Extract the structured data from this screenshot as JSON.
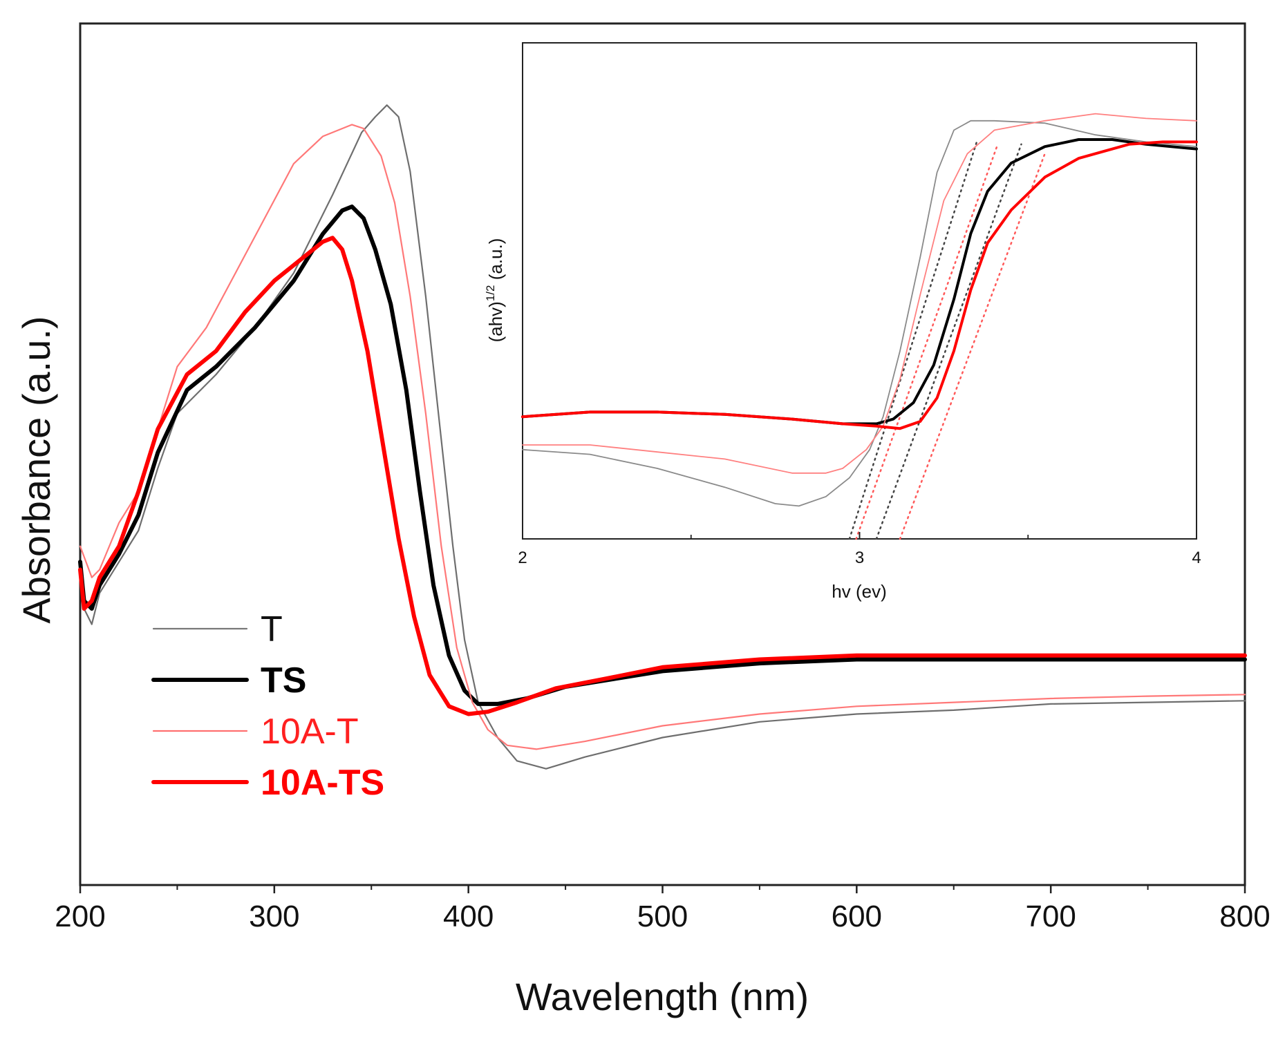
{
  "chart_data": [
    {
      "type": "line",
      "name": "main",
      "xlabel": "Wavelength (nm)",
      "ylabel": "Absorbance (a.u.)",
      "xlim": [
        200,
        800
      ],
      "ylim": [
        0,
        1
      ],
      "x_ticks": [
        200,
        300,
        400,
        500,
        600,
        700,
        800
      ],
      "y_ticks_shown": false,
      "legend_position": "lower-left",
      "series": [
        {
          "name": "T",
          "color": "#6e6e6e",
          "weight": "thin",
          "points": [
            [
              200,
              0.36
            ],
            [
              202,
              0.3
            ],
            [
              206,
              0.28
            ],
            [
              210,
              0.32
            ],
            [
              220,
              0.36
            ],
            [
              230,
              0.4
            ],
            [
              240,
              0.48
            ],
            [
              250,
              0.55
            ],
            [
              270,
              0.6
            ],
            [
              290,
              0.66
            ],
            [
              310,
              0.73
            ],
            [
              330,
              0.83
            ],
            [
              345,
              0.91
            ],
            [
              352,
              0.93
            ],
            [
              358,
              0.945
            ],
            [
              364,
              0.93
            ],
            [
              370,
              0.86
            ],
            [
              378,
              0.7
            ],
            [
              385,
              0.54
            ],
            [
              392,
              0.38
            ],
            [
              398,
              0.26
            ],
            [
              405,
              0.18
            ],
            [
              415,
              0.135
            ],
            [
              425,
              0.105
            ],
            [
              440,
              0.095
            ],
            [
              460,
              0.11
            ],
            [
              500,
              0.135
            ],
            [
              550,
              0.155
            ],
            [
              600,
              0.165
            ],
            [
              650,
              0.17
            ],
            [
              700,
              0.178
            ],
            [
              750,
              0.18
            ],
            [
              800,
              0.182
            ]
          ]
        },
        {
          "name": "TS",
          "color": "#000000",
          "weight": "thick",
          "points": [
            [
              200,
              0.36
            ],
            [
              202,
              0.31
            ],
            [
              206,
              0.3
            ],
            [
              210,
              0.33
            ],
            [
              220,
              0.37
            ],
            [
              230,
              0.42
            ],
            [
              240,
              0.5
            ],
            [
              255,
              0.58
            ],
            [
              270,
              0.61
            ],
            [
              290,
              0.66
            ],
            [
              310,
              0.72
            ],
            [
              325,
              0.78
            ],
            [
              335,
              0.81
            ],
            [
              340,
              0.815
            ],
            [
              346,
              0.8
            ],
            [
              352,
              0.76
            ],
            [
              360,
              0.69
            ],
            [
              368,
              0.58
            ],
            [
              375,
              0.45
            ],
            [
              382,
              0.33
            ],
            [
              390,
              0.24
            ],
            [
              398,
              0.195
            ],
            [
              405,
              0.178
            ],
            [
              415,
              0.178
            ],
            [
              430,
              0.185
            ],
            [
              450,
              0.2
            ],
            [
              500,
              0.22
            ],
            [
              550,
              0.23
            ],
            [
              600,
              0.235
            ],
            [
              700,
              0.235
            ],
            [
              800,
              0.235
            ]
          ]
        },
        {
          "name": "10A-T",
          "color": "#ff7878",
          "weight": "thin",
          "points": [
            [
              200,
              0.38
            ],
            [
              203,
              0.36
            ],
            [
              206,
              0.34
            ],
            [
              210,
              0.35
            ],
            [
              220,
              0.41
            ],
            [
              230,
              0.45
            ],
            [
              240,
              0.53
            ],
            [
              250,
              0.61
            ],
            [
              265,
              0.66
            ],
            [
              280,
              0.73
            ],
            [
              295,
              0.8
            ],
            [
              310,
              0.87
            ],
            [
              325,
              0.905
            ],
            [
              340,
              0.92
            ],
            [
              346,
              0.915
            ],
            [
              355,
              0.88
            ],
            [
              362,
              0.82
            ],
            [
              370,
              0.7
            ],
            [
              378,
              0.55
            ],
            [
              386,
              0.38
            ],
            [
              394,
              0.25
            ],
            [
              402,
              0.18
            ],
            [
              410,
              0.145
            ],
            [
              420,
              0.125
            ],
            [
              435,
              0.12
            ],
            [
              460,
              0.13
            ],
            [
              500,
              0.15
            ],
            [
              550,
              0.165
            ],
            [
              600,
              0.175
            ],
            [
              650,
              0.18
            ],
            [
              700,
              0.185
            ],
            [
              750,
              0.188
            ],
            [
              800,
              0.19
            ]
          ]
        },
        {
          "name": "10A-TS",
          "color": "#ff0000",
          "weight": "thick",
          "points": [
            [
              200,
              0.35
            ],
            [
              202,
              0.3
            ],
            [
              206,
              0.31
            ],
            [
              210,
              0.34
            ],
            [
              220,
              0.38
            ],
            [
              230,
              0.45
            ],
            [
              240,
              0.53
            ],
            [
              255,
              0.6
            ],
            [
              270,
              0.63
            ],
            [
              285,
              0.68
            ],
            [
              300,
              0.72
            ],
            [
              315,
              0.75
            ],
            [
              325,
              0.77
            ],
            [
              330,
              0.775
            ],
            [
              335,
              0.76
            ],
            [
              340,
              0.72
            ],
            [
              348,
              0.63
            ],
            [
              356,
              0.51
            ],
            [
              364,
              0.39
            ],
            [
              372,
              0.29
            ],
            [
              380,
              0.215
            ],
            [
              390,
              0.175
            ],
            [
              400,
              0.165
            ],
            [
              410,
              0.168
            ],
            [
              425,
              0.18
            ],
            [
              445,
              0.198
            ],
            [
              470,
              0.21
            ],
            [
              500,
              0.225
            ],
            [
              550,
              0.235
            ],
            [
              600,
              0.24
            ],
            [
              700,
              0.24
            ],
            [
              800,
              0.24
            ]
          ]
        }
      ]
    },
    {
      "type": "line",
      "name": "inset",
      "xlabel": "hv (ev)",
      "ylabel_base": "(ahv)",
      "ylabel_sup": "1/2",
      "ylabel_unit": " (a.u.)",
      "xlim": [
        2,
        4
      ],
      "ylim": [
        0,
        1
      ],
      "x_ticks": [
        2,
        3,
        4
      ],
      "series": [
        {
          "name": "T",
          "color": "#8a8a8a",
          "weight": "thin",
          "points": [
            [
              2.0,
              0.19
            ],
            [
              2.2,
              0.18
            ],
            [
              2.4,
              0.15
            ],
            [
              2.6,
              0.11
            ],
            [
              2.75,
              0.075
            ],
            [
              2.82,
              0.07
            ],
            [
              2.9,
              0.09
            ],
            [
              2.97,
              0.13
            ],
            [
              3.03,
              0.19
            ],
            [
              3.07,
              0.26
            ],
            [
              3.12,
              0.4
            ],
            [
              3.18,
              0.6
            ],
            [
              3.23,
              0.78
            ],
            [
              3.28,
              0.87
            ],
            [
              3.33,
              0.89
            ],
            [
              3.4,
              0.89
            ],
            [
              3.55,
              0.885
            ],
            [
              3.7,
              0.86
            ],
            [
              3.85,
              0.845
            ],
            [
              4.0,
              0.835
            ]
          ]
        },
        {
          "name": "TS",
          "color": "#000000",
          "weight": "thick",
          "points": [
            [
              2.0,
              0.26
            ],
            [
              2.2,
              0.27
            ],
            [
              2.4,
              0.27
            ],
            [
              2.6,
              0.265
            ],
            [
              2.8,
              0.255
            ],
            [
              2.95,
              0.245
            ],
            [
              3.05,
              0.245
            ],
            [
              3.1,
              0.255
            ],
            [
              3.16,
              0.29
            ],
            [
              3.22,
              0.37
            ],
            [
              3.28,
              0.51
            ],
            [
              3.33,
              0.65
            ],
            [
              3.38,
              0.74
            ],
            [
              3.45,
              0.8
            ],
            [
              3.55,
              0.835
            ],
            [
              3.65,
              0.85
            ],
            [
              3.75,
              0.85
            ],
            [
              3.85,
              0.84
            ],
            [
              4.0,
              0.83
            ]
          ]
        },
        {
          "name": "10A-T",
          "color": "#ff8080",
          "weight": "thin",
          "points": [
            [
              2.0,
              0.2
            ],
            [
              2.2,
              0.2
            ],
            [
              2.4,
              0.185
            ],
            [
              2.6,
              0.17
            ],
            [
              2.8,
              0.14
            ],
            [
              2.9,
              0.14
            ],
            [
              2.95,
              0.15
            ],
            [
              3.02,
              0.19
            ],
            [
              3.07,
              0.24
            ],
            [
              3.12,
              0.34
            ],
            [
              3.18,
              0.52
            ],
            [
              3.25,
              0.72
            ],
            [
              3.32,
              0.82
            ],
            [
              3.4,
              0.87
            ],
            [
              3.55,
              0.89
            ],
            [
              3.7,
              0.905
            ],
            [
              3.85,
              0.895
            ],
            [
              4.0,
              0.89
            ]
          ]
        },
        {
          "name": "10A-TS",
          "color": "#ff0000",
          "weight": "thick",
          "points": [
            [
              2.0,
              0.26
            ],
            [
              2.2,
              0.27
            ],
            [
              2.4,
              0.27
            ],
            [
              2.6,
              0.265
            ],
            [
              2.8,
              0.255
            ],
            [
              2.95,
              0.245
            ],
            [
              3.05,
              0.24
            ],
            [
              3.12,
              0.235
            ],
            [
              3.18,
              0.25
            ],
            [
              3.23,
              0.3
            ],
            [
              3.28,
              0.4
            ],
            [
              3.33,
              0.53
            ],
            [
              3.38,
              0.63
            ],
            [
              3.45,
              0.7
            ],
            [
              3.55,
              0.77
            ],
            [
              3.65,
              0.81
            ],
            [
              3.8,
              0.84
            ],
            [
              3.9,
              0.845
            ],
            [
              4.0,
              0.845
            ]
          ]
        }
      ],
      "tangent_lines": [
        {
          "color": "#444444",
          "points": [
            [
              2.97,
              0.0
            ],
            [
              3.35,
              0.85
            ]
          ]
        },
        {
          "color": "#ff5a5a",
          "points": [
            [
              2.99,
              0.0
            ],
            [
              3.41,
              0.84
            ]
          ]
        },
        {
          "color": "#444444",
          "points": [
            [
              3.05,
              0.0
            ],
            [
              3.48,
              0.84
            ]
          ]
        },
        {
          "color": "#ff5a5a",
          "points": [
            [
              3.12,
              0.0
            ],
            [
              3.55,
              0.82
            ]
          ]
        }
      ]
    }
  ],
  "legend": [
    {
      "label": "T",
      "color": "#777777",
      "text_color": "#111111",
      "bold": false,
      "weight": "thin"
    },
    {
      "label": "TS",
      "color": "#000000",
      "text_color": "#000000",
      "bold": true,
      "weight": "thick"
    },
    {
      "label": "10A-T",
      "color": "#ff7070",
      "text_color": "#ff2020",
      "bold": false,
      "weight": "thin"
    },
    {
      "label": "10A-TS",
      "color": "#ff0000",
      "text_color": "#ff0000",
      "bold": true,
      "weight": "thick"
    }
  ]
}
